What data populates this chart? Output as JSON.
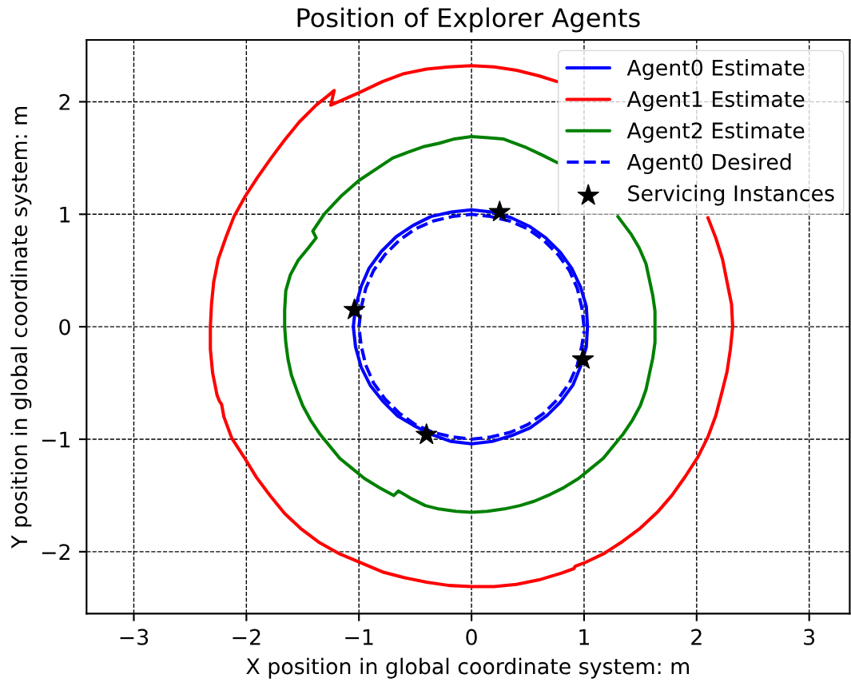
{
  "chart_data": {
    "type": "line",
    "title": "Position of Explorer Agents",
    "xlabel": "X position in global coordinate system: m",
    "ylabel": "Y position in global coordinate system: m",
    "xlim": [
      -3.42,
      3.36
    ],
    "ylim": [
      -2.55,
      2.55
    ],
    "xticks": [
      {
        "value": -3,
        "label": "−3"
      },
      {
        "value": -2,
        "label": "−2"
      },
      {
        "value": -1,
        "label": "−1"
      },
      0,
      1,
      2,
      3
    ],
    "yticks": [
      {
        "value": -2,
        "label": "−2"
      },
      {
        "value": -1,
        "label": "−1"
      },
      0,
      1,
      2
    ],
    "grid": true,
    "legend": "top right",
    "series": [
      {
        "name": "Agent0 Estimate",
        "color": "#0000ff",
        "x": [
          1.03,
          1.02,
          0.97,
          0.89,
          0.79,
          0.66,
          0.52,
          0.35,
          0.18,
          0.0,
          -0.18,
          -0.36,
          -0.52,
          -0.67,
          -0.8,
          -0.91,
          -0.98,
          -1.03,
          -1.05,
          -1.03,
          -0.98,
          -0.9,
          -0.79,
          -0.66,
          -0.51,
          -0.35,
          -0.18,
          0.0,
          0.18,
          0.35,
          0.52,
          0.67,
          0.79,
          0.9,
          0.97,
          1.02,
          1.03,
          1.02
        ],
        "values": [
          0.0,
          0.18,
          0.35,
          0.52,
          0.66,
          0.79,
          0.89,
          0.97,
          1.02,
          1.04,
          1.02,
          0.98,
          0.9,
          0.8,
          0.67,
          0.52,
          0.36,
          0.18,
          0.0,
          -0.18,
          -0.36,
          -0.52,
          -0.66,
          -0.79,
          -0.88,
          -0.96,
          -1.02,
          -1.04,
          -1.02,
          -0.97,
          -0.9,
          -0.79,
          -0.67,
          -0.52,
          -0.35,
          -0.18,
          0.0,
          0.18
        ]
      },
      {
        "name": "Agent1 Estimate",
        "color": "#ff0000",
        "x": [
          2.1,
          2.17,
          2.23,
          2.27,
          2.31,
          2.32,
          2.3,
          2.27,
          2.22,
          2.17,
          2.1,
          2.01,
          1.9,
          1.78,
          1.65,
          1.5,
          1.34,
          1.17,
          1.0,
          0.92,
          0.91,
          0.8,
          0.6,
          0.4,
          0.2,
          0.0,
          -0.2,
          -0.4,
          -0.6,
          -0.79,
          -0.98,
          -1.17,
          -1.35,
          -1.51,
          -1.66,
          -1.79,
          -1.91,
          -2.02,
          -2.13,
          -2.2,
          -2.22,
          -2.24,
          -2.26,
          -2.3,
          -2.32,
          -2.32,
          -2.31,
          -2.29,
          -2.25,
          -2.18,
          -2.11,
          -2.01,
          -1.9,
          -1.78,
          -1.66,
          -1.53,
          -1.38,
          -1.28,
          -1.22,
          -1.25,
          -1.0,
          -0.79,
          -0.6,
          -0.4,
          -0.2,
          0.0,
          0.2,
          0.4,
          0.6,
          0.76
        ],
        "values": [
          0.97,
          0.79,
          0.6,
          0.4,
          0.2,
          0.0,
          -0.2,
          -0.4,
          -0.6,
          -0.79,
          -0.98,
          -1.16,
          -1.33,
          -1.5,
          -1.65,
          -1.79,
          -1.91,
          -2.02,
          -2.1,
          -2.13,
          -2.15,
          -2.19,
          -2.25,
          -2.29,
          -2.31,
          -2.31,
          -2.3,
          -2.27,
          -2.23,
          -2.18,
          -2.1,
          -2.02,
          -1.92,
          -1.8,
          -1.66,
          -1.5,
          -1.34,
          -1.16,
          -0.99,
          -0.8,
          -0.69,
          -0.66,
          -0.61,
          -0.41,
          -0.2,
          0.0,
          0.2,
          0.4,
          0.6,
          0.8,
          0.98,
          1.16,
          1.33,
          1.5,
          1.66,
          1.82,
          1.97,
          2.05,
          2.1,
          1.97,
          2.08,
          2.18,
          2.25,
          2.29,
          2.31,
          2.32,
          2.31,
          2.28,
          2.23,
          2.18
        ]
      },
      {
        "name": "Agent2 Estimate",
        "color": "#008000",
        "x": [
          1.3,
          1.42,
          1.49,
          1.55,
          1.58,
          1.61,
          1.63,
          1.63,
          1.63,
          1.61,
          1.58,
          1.55,
          1.5,
          1.43,
          1.35,
          1.26,
          1.17,
          1.06,
          0.95,
          0.82,
          0.7,
          0.56,
          0.43,
          0.29,
          0.14,
          0.0,
          -0.14,
          -0.29,
          -0.41,
          -0.53,
          -0.65,
          -0.69,
          -0.82,
          -0.95,
          -1.06,
          -1.17,
          -1.26,
          -1.35,
          -1.43,
          -1.5,
          -1.55,
          -1.6,
          -1.63,
          -1.65,
          -1.66,
          -1.66,
          -1.65,
          -1.61,
          -1.54,
          -1.45,
          -1.38,
          -1.41,
          -1.31,
          -1.16,
          -1.0,
          -0.82,
          -0.7,
          -0.57,
          -0.43,
          -0.29,
          -0.15,
          0.0,
          0.15,
          0.28,
          0.47,
          0.62,
          0.76
        ],
        "values": [
          0.98,
          0.82,
          0.7,
          0.56,
          0.42,
          0.28,
          0.14,
          0.0,
          -0.14,
          -0.28,
          -0.42,
          -0.56,
          -0.7,
          -0.83,
          -0.95,
          -1.06,
          -1.17,
          -1.26,
          -1.35,
          -1.43,
          -1.49,
          -1.55,
          -1.59,
          -1.62,
          -1.64,
          -1.65,
          -1.64,
          -1.62,
          -1.59,
          -1.53,
          -1.46,
          -1.5,
          -1.43,
          -1.35,
          -1.26,
          -1.17,
          -1.06,
          -0.95,
          -0.83,
          -0.7,
          -0.57,
          -0.43,
          -0.29,
          -0.14,
          0.0,
          0.15,
          0.32,
          0.46,
          0.59,
          0.7,
          0.79,
          0.85,
          1.0,
          1.16,
          1.3,
          1.42,
          1.5,
          1.55,
          1.6,
          1.63,
          1.67,
          1.69,
          1.68,
          1.67,
          1.6,
          1.53,
          1.46
        ]
      },
      {
        "name": "Agent0 Desired",
        "color": "#0000ff",
        "line_style": "dashed",
        "x": [
          1.0,
          0.98,
          0.94,
          0.87,
          0.77,
          0.64,
          0.5,
          0.34,
          0.17,
          0.0,
          -0.17,
          -0.34,
          -0.5,
          -0.64,
          -0.77,
          -0.87,
          -0.94,
          -0.98,
          -1.0,
          -0.98,
          -0.94,
          -0.87,
          -0.77,
          -0.64,
          -0.5,
          -0.34,
          -0.17,
          0.0,
          0.17,
          0.34,
          0.5,
          0.64,
          0.77,
          0.87,
          0.94,
          0.98,
          1.0
        ],
        "values": [
          0.0,
          0.17,
          0.34,
          0.5,
          0.64,
          0.77,
          0.87,
          0.94,
          0.98,
          1.0,
          0.98,
          0.94,
          0.87,
          0.77,
          0.64,
          0.5,
          0.34,
          0.17,
          0.0,
          -0.17,
          -0.34,
          -0.5,
          -0.64,
          -0.77,
          -0.87,
          -0.94,
          -0.98,
          -1.0,
          -0.98,
          -0.94,
          -0.87,
          -0.77,
          -0.64,
          -0.5,
          -0.34,
          -0.17,
          -0.04
        ]
      },
      {
        "name": "Servicing Instances",
        "type": "scatter",
        "marker": "star",
        "color": "#000000",
        "x": [
          0.25,
          -1.04,
          0.99,
          -0.4
        ],
        "values": [
          1.02,
          0.15,
          -0.29,
          -0.96
        ]
      }
    ]
  }
}
